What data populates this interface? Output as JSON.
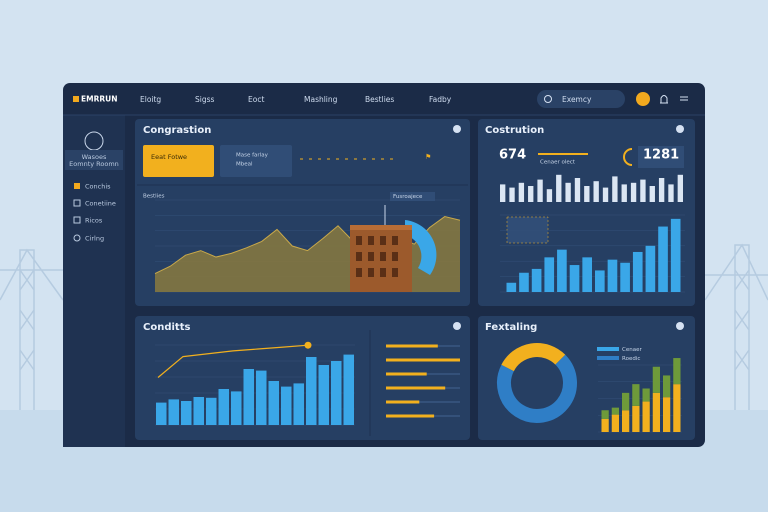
{
  "brand": "EMRRUN",
  "nav": [
    "Eloitg",
    "Sigss",
    "Eoct",
    "Mashling",
    "Bestlies",
    "Fadby"
  ],
  "search": "Exemcy",
  "sidebar": {
    "profile": [
      "Wasoes",
      "Eomnty Roomn"
    ],
    "items": [
      "Conchis",
      "Conetiine",
      "Ricos",
      "Cirlng"
    ]
  },
  "congestion": {
    "title": "Congrastion",
    "alert": "Eeat Fotwe",
    "info": [
      "Mase farlay",
      "Mbeal"
    ],
    "chart_label": "Bestlies",
    "callout": "Fusroajece",
    "color": "#8a7a3e",
    "values": [
      20,
      28,
      40,
      45,
      38,
      42,
      48,
      55,
      68,
      50,
      45,
      58,
      72,
      55,
      40,
      48,
      60,
      52,
      70,
      82,
      78
    ]
  },
  "construction": {
    "title": "Costrution",
    "stat1": "674",
    "stat2": "1281",
    "callout": "Cenaer olect",
    "color": "#3aa7e8",
    "spark": [
      55,
      45,
      60,
      50,
      70,
      40,
      85,
      60,
      75,
      50,
      65,
      45,
      80,
      55,
      60,
      70,
      50,
      75,
      55,
      85
    ],
    "bars": [
      12,
      25,
      30,
      45,
      55,
      35,
      45,
      28,
      42,
      38,
      52,
      60,
      85,
      95
    ]
  },
  "conduits": {
    "title": "Conditts",
    "color": "#3aa7e8",
    "line_color": "#f2b01e",
    "bars": [
      28,
      32,
      30,
      35,
      34,
      45,
      42,
      70,
      68,
      55,
      48,
      52,
      85,
      75,
      80,
      88
    ],
    "line": [
      50,
      72,
      75,
      78,
      80,
      82,
      84
    ],
    "progress": [
      70,
      100,
      55,
      80,
      45,
      65
    ]
  },
  "forecasting": {
    "title": "Fextaling",
    "donut": [
      30,
      70
    ],
    "donut_colors": [
      "#f2b01e",
      "#2f7ec6"
    ],
    "legend": [
      "Cenaer",
      "Roedic"
    ],
    "stack": {
      "a": [
        15,
        20,
        25,
        30,
        35,
        45,
        40,
        55
      ],
      "b": [
        10,
        8,
        20,
        25,
        15,
        30,
        25,
        30
      ]
    },
    "stack_colors": [
      "#f2b01e",
      "#6e9a3a"
    ]
  }
}
